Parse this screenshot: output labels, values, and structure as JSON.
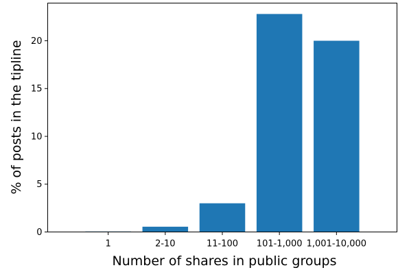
{
  "chart_data": {
    "type": "bar",
    "title": "",
    "xlabel": "Number of shares in public groups",
    "ylabel": "% of posts in the tipline",
    "categories": [
      "1",
      "2-10",
      "11-100",
      "101-1,000",
      "1,001-10,000"
    ],
    "values": [
      0.05,
      0.55,
      3.0,
      22.8,
      20.0
    ],
    "ylim": [
      0,
      23.94
    ],
    "yticks": [
      0,
      5,
      10,
      15,
      20
    ],
    "ytick_labels": [
      "0",
      "5",
      "10",
      "15",
      "20"
    ],
    "bar_color": "#1f77b4",
    "grid": false,
    "legend": "none"
  }
}
